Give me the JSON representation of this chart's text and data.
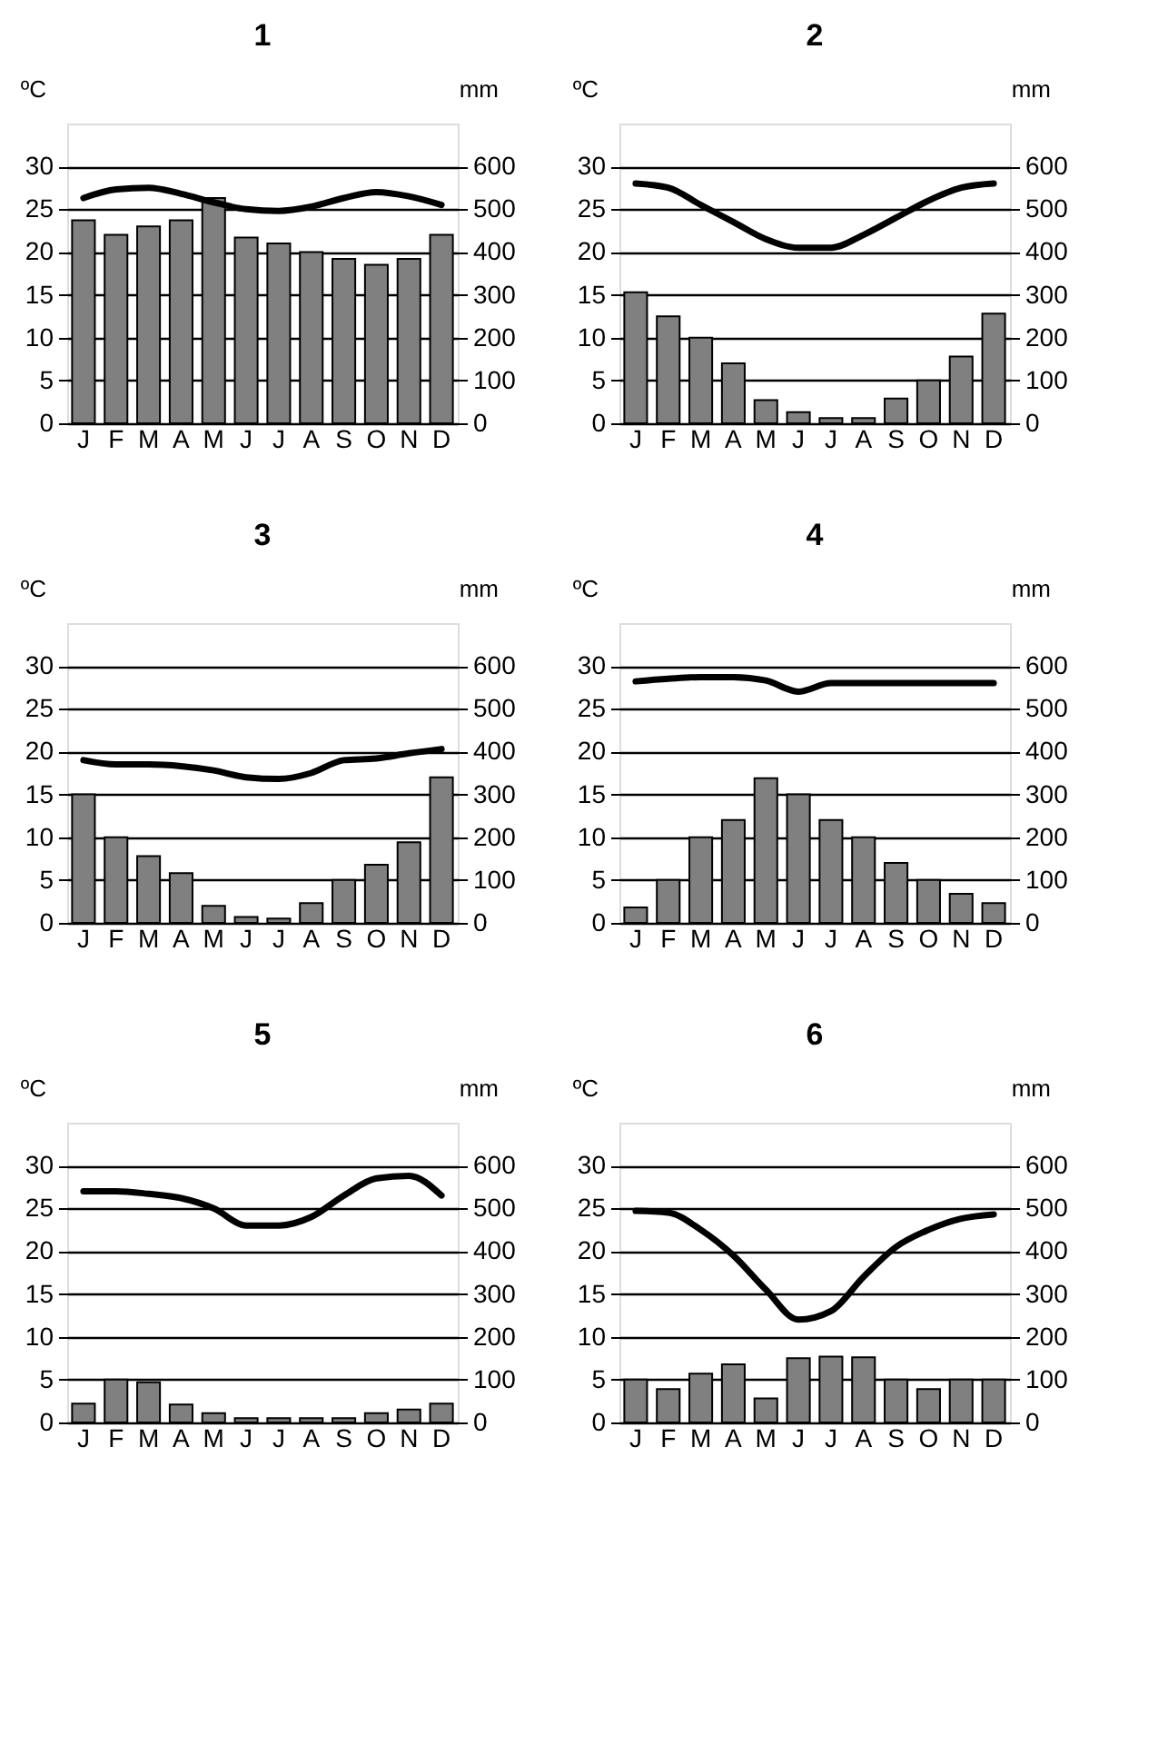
{
  "chart_data": [
    {
      "type": "bar",
      "title": "1",
      "ylabel": "ºC",
      "y2label": "mm",
      "categories": [
        "J",
        "F",
        "M",
        "A",
        "M",
        "J",
        "J",
        "A",
        "S",
        "O",
        "N",
        "D"
      ],
      "ylim": [
        0,
        35
      ],
      "yticks": [
        0,
        5,
        10,
        15,
        20,
        25,
        30
      ],
      "y2lim": [
        0,
        700
      ],
      "y2ticks": [
        0,
        100,
        200,
        300,
        400,
        500,
        600
      ],
      "grid": "y",
      "series": [
        {
          "axis": "y2",
          "color": "#808080",
          "values": [
            474,
            440,
            460,
            474,
            526,
            434,
            420,
            400,
            384,
            370,
            384,
            440
          ]
        },
        {
          "type": "line",
          "color": "#000000",
          "line_style": "solid",
          "values": [
            26.3,
            27.3,
            27.5,
            26.8,
            25.8,
            25,
            24.8,
            25.3,
            26.3,
            27,
            26.5,
            25.5
          ]
        }
      ]
    },
    {
      "type": "bar",
      "title": "2",
      "ylabel": "ºC",
      "y2label": "mm",
      "categories": [
        "J",
        "F",
        "M",
        "A",
        "M",
        "J",
        "J",
        "A",
        "S",
        "O",
        "N",
        "D"
      ],
      "ylim": [
        0,
        35
      ],
      "yticks": [
        0,
        5,
        10,
        15,
        20,
        25,
        30
      ],
      "y2lim": [
        0,
        700
      ],
      "y2ticks": [
        0,
        100,
        200,
        300,
        400,
        500,
        600
      ],
      "grid": "y",
      "series": [
        {
          "axis": "y2",
          "color": "#808080",
          "values": [
            306,
            250,
            200,
            140,
            54,
            26,
            12,
            12,
            58,
            100,
            156,
            256
          ]
        },
        {
          "type": "line",
          "color": "#000000",
          "line_style": "solid",
          "values": [
            28,
            27.5,
            25.5,
            23.5,
            21.5,
            20.5,
            20.5,
            22,
            24,
            26,
            27.5,
            28
          ]
        }
      ]
    },
    {
      "type": "bar",
      "title": "3",
      "ylabel": "ºC",
      "y2label": "mm",
      "categories": [
        "J",
        "F",
        "M",
        "A",
        "M",
        "J",
        "J",
        "A",
        "S",
        "O",
        "N",
        "D"
      ],
      "ylim": [
        0,
        35
      ],
      "yticks": [
        0,
        5,
        10,
        15,
        20,
        25,
        30
      ],
      "y2lim": [
        0,
        700
      ],
      "y2ticks": [
        0,
        100,
        200,
        300,
        400,
        500,
        600
      ],
      "grid": "y",
      "series": [
        {
          "axis": "y2",
          "color": "#808080",
          "values": [
            300,
            200,
            156,
            116,
            40,
            14,
            10,
            46,
            100,
            136,
            188,
            340
          ]
        },
        {
          "type": "line",
          "color": "#000000",
          "line_style": "solid",
          "values": [
            19,
            18.5,
            18.5,
            18.3,
            17.8,
            17,
            16.8,
            17.5,
            19,
            19.2,
            19.8,
            20.3
          ]
        }
      ]
    },
    {
      "type": "bar",
      "title": "4",
      "ylabel": "ºC",
      "y2label": "mm",
      "categories": [
        "J",
        "F",
        "M",
        "A",
        "M",
        "J",
        "J",
        "A",
        "S",
        "O",
        "N",
        "D"
      ],
      "ylim": [
        0,
        35
      ],
      "yticks": [
        0,
        5,
        10,
        15,
        20,
        25,
        30
      ],
      "y2lim": [
        0,
        700
      ],
      "y2ticks": [
        0,
        100,
        200,
        300,
        400,
        500,
        600
      ],
      "grid": "y",
      "series": [
        {
          "axis": "y2",
          "color": "#808080",
          "values": [
            36,
            100,
            200,
            240,
            338,
            300,
            240,
            200,
            140,
            100,
            68,
            46
          ]
        },
        {
          "type": "line",
          "color": "#000000",
          "line_style": "solid",
          "values": [
            28.2,
            28.5,
            28.7,
            28.7,
            28.3,
            27,
            28,
            28,
            28,
            28,
            28,
            28
          ]
        }
      ]
    },
    {
      "type": "bar",
      "title": "5",
      "ylabel": "ºC",
      "y2label": "mm",
      "categories": [
        "J",
        "F",
        "M",
        "A",
        "M",
        "J",
        "J",
        "A",
        "S",
        "O",
        "N",
        "D"
      ],
      "ylim": [
        0,
        35
      ],
      "yticks": [
        0,
        5,
        10,
        15,
        20,
        25,
        30
      ],
      "y2lim": [
        0,
        700
      ],
      "y2ticks": [
        0,
        100,
        200,
        300,
        400,
        500,
        600
      ],
      "grid": "y",
      "series": [
        {
          "axis": "y2",
          "color": "#808080",
          "values": [
            44,
            100,
            94,
            42,
            22,
            10,
            10,
            10,
            10,
            22,
            30,
            44
          ]
        },
        {
          "type": "line",
          "color": "#000000",
          "line_style": "solid",
          "values": [
            27,
            27,
            26.7,
            26.2,
            25,
            23,
            23,
            24,
            26.5,
            28.5,
            28.8,
            26.5
          ]
        }
      ]
    },
    {
      "type": "bar",
      "title": "6",
      "ylabel": "ºC",
      "y2label": "mm",
      "categories": [
        "J",
        "F",
        "M",
        "A",
        "M",
        "J",
        "J",
        "A",
        "S",
        "O",
        "N",
        "D"
      ],
      "ylim": [
        0,
        35
      ],
      "yticks": [
        0,
        5,
        10,
        15,
        20,
        25,
        30
      ],
      "y2lim": [
        0,
        700
      ],
      "y2ticks": [
        0,
        100,
        200,
        300,
        400,
        500,
        600
      ],
      "grid": "y",
      "series": [
        {
          "axis": "y2",
          "color": "#808080",
          "values": [
            100,
            78,
            114,
            136,
            56,
            150,
            154,
            152,
            100,
            78,
            100,
            100
          ]
        },
        {
          "type": "line",
          "color": "#000000",
          "line_style": "solid",
          "values": [
            24.7,
            24.5,
            22.5,
            19.5,
            15.5,
            12,
            13,
            17,
            20.5,
            22.5,
            23.8,
            24.3
          ]
        }
      ]
    }
  ]
}
